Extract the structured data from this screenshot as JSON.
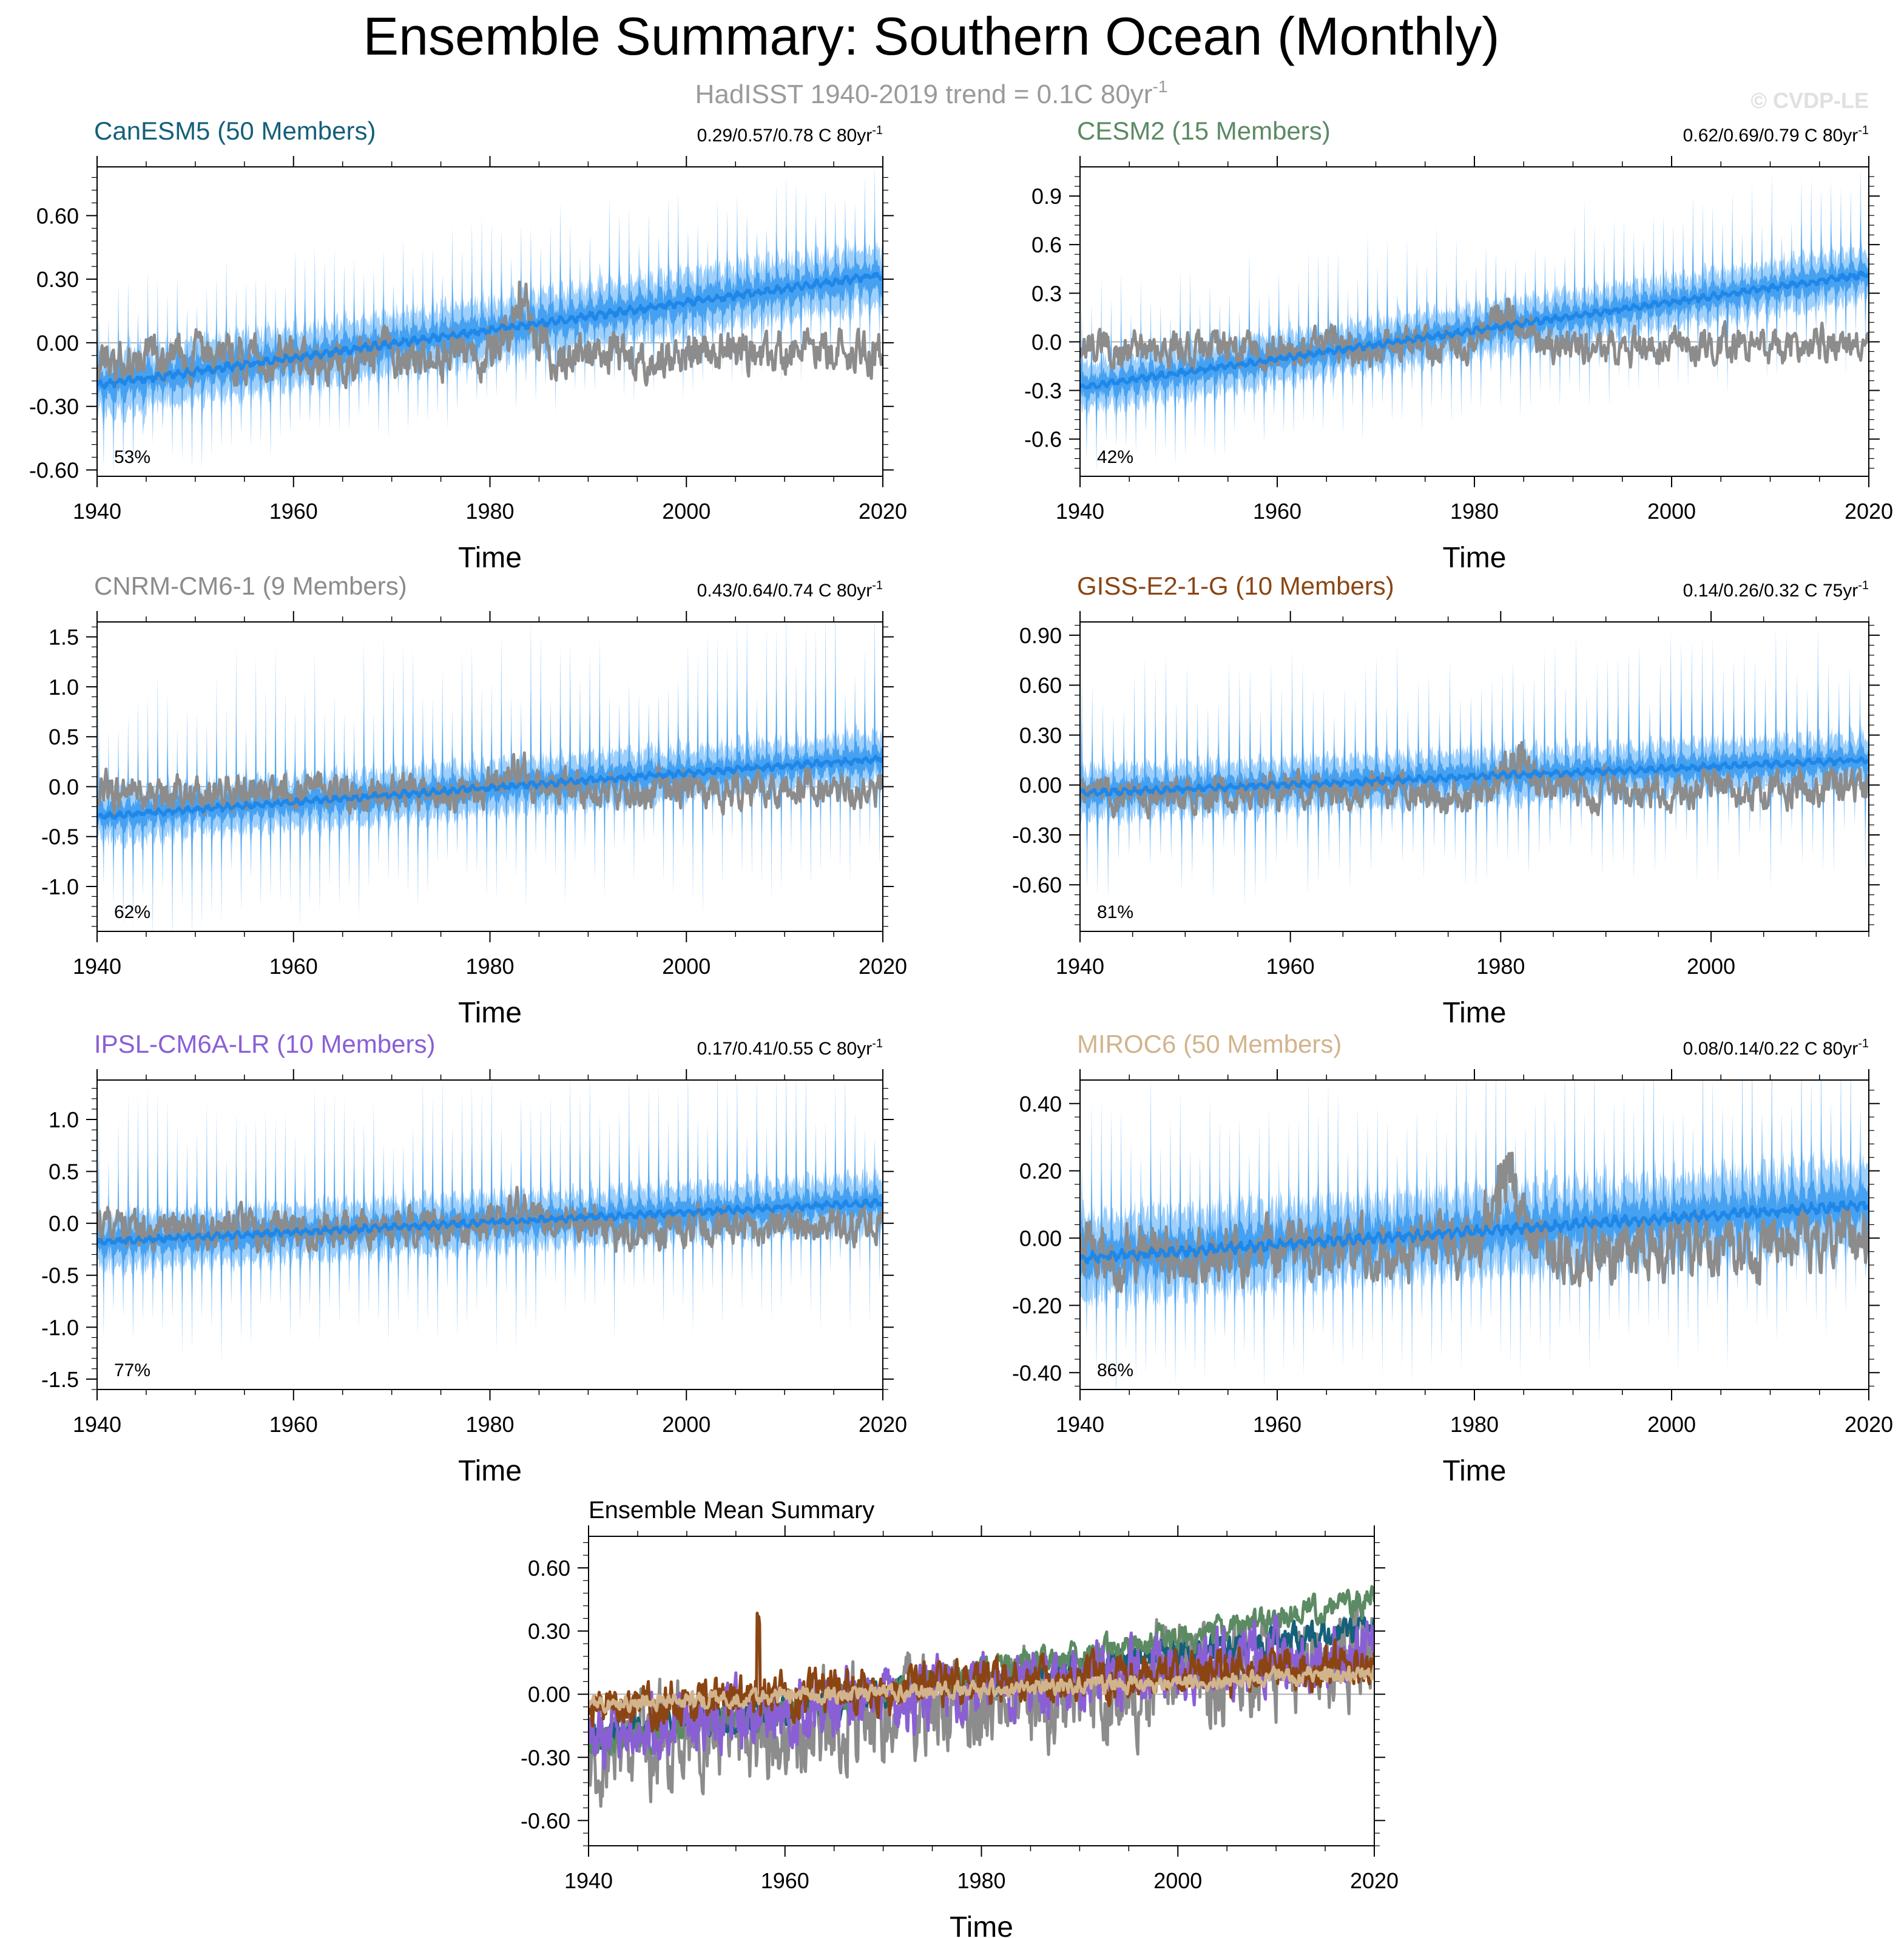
{
  "title": "Ensemble Summary: Southern Ocean (Monthly)",
  "subtitle": {
    "text": "HadISST 1940-2019 trend = 0.1C 80yr",
    "sup": "-1"
  },
  "watermark": "© CVDP-LE",
  "colors": {
    "obs": "#8c8c8c",
    "ens_mean": "#1f87e8",
    "band_inner": "#3d9bf0",
    "band_outer": "#9fd0fb",
    "zero_line": "#b0b0b0"
  },
  "chart_data": [
    {
      "type": "line",
      "title": "CanESM5 (50 Members)",
      "title_color": "#14607a",
      "trend_label": {
        "text": "0.29/0.57/0.78 C 80yr",
        "sup": "-1"
      },
      "percent_label": "53%",
      "xlabel": "Time",
      "xlim": [
        1940,
        2020
      ],
      "xticks": [
        "1940",
        "1960",
        "1980",
        "2000",
        "2020"
      ],
      "ylim": [
        -0.63,
        0.83
      ],
      "yticks": [
        "-0.60",
        "-0.30",
        "0.00",
        "0.30",
        "0.60"
      ],
      "ytick_values": [
        -0.6,
        -0.3,
        0.0,
        0.3,
        0.6
      ],
      "ens_mean_trend": {
        "start": -0.2,
        "end": 0.32
      },
      "obs_trend": {
        "start": -0.08,
        "end": -0.04,
        "bump_year": 1983,
        "bump": 0.22
      },
      "spread": 0.14,
      "spike": 0.25
    },
    {
      "type": "line",
      "title": "CESM2 (15 Members)",
      "title_color": "#5b8a63",
      "trend_label": {
        "text": "0.62/0.69/0.79 C 80yr",
        "sup": "-1"
      },
      "percent_label": "42%",
      "xlabel": "Time",
      "xlim": [
        1940,
        2020
      ],
      "xticks": [
        "1940",
        "1960",
        "1980",
        "2000",
        "2020"
      ],
      "ylim": [
        -0.83,
        1.08
      ],
      "yticks": [
        "-0.6",
        "-0.3",
        "0.0",
        "0.3",
        "0.6",
        "0.9"
      ],
      "ytick_values": [
        -0.6,
        -0.3,
        0.0,
        0.3,
        0.6,
        0.9
      ],
      "ens_mean_trend": {
        "start": -0.28,
        "end": 0.42
      },
      "obs_trend": {
        "start": -0.05,
        "end": -0.02,
        "bump_year": 1983,
        "bump": 0.2
      },
      "spread": 0.15,
      "spike": 0.35
    },
    {
      "type": "line",
      "title": "CNRM-CM6-1 (9 Members)",
      "title_color": "#8c8c8c",
      "trend_label": {
        "text": "0.43/0.64/0.74 C 80yr",
        "sup": "-1"
      },
      "percent_label": "62%",
      "xlabel": "Time",
      "xlim": [
        1940,
        2020
      ],
      "xticks": [
        "1940",
        "1960",
        "1980",
        "2000",
        "2020"
      ],
      "ylim": [
        -1.45,
        1.65
      ],
      "yticks": [
        "-1.0",
        "-0.5",
        "0.0",
        "0.5",
        "1.0",
        "1.5"
      ],
      "ytick_values": [
        -1.0,
        -0.5,
        0.0,
        0.5,
        1.0,
        1.5
      ],
      "ens_mean_trend": {
        "start": -0.3,
        "end": 0.28
      },
      "obs_trend": {
        "start": -0.05,
        "end": -0.03,
        "bump_year": 1983,
        "bump": 0.2
      },
      "spread": 0.25,
      "spike": 0.9
    },
    {
      "type": "line",
      "title": "GISS-E2-1-G (10 Members)",
      "title_color": "#8b4513",
      "trend_label": {
        "text": "0.14/0.26/0.32 C 75yr",
        "sup": "-1"
      },
      "percent_label": "81%",
      "xlabel": "Time",
      "xlim": [
        1940,
        2015
      ],
      "xticks": [
        "1940",
        "1960",
        "1980",
        "2000"
      ],
      "ylim": [
        -0.88,
        0.98
      ],
      "yticks": [
        "-0.60",
        "-0.30",
        "0.00",
        "0.30",
        "0.60",
        "0.90"
      ],
      "ytick_values": [
        -0.6,
        -0.3,
        0.0,
        0.3,
        0.6,
        0.9
      ],
      "ens_mean_trend": {
        "start": -0.05,
        "end": 0.15
      },
      "obs_trend": {
        "start": -0.06,
        "end": -0.02,
        "bump_year": 1982,
        "bump": 0.2
      },
      "spread": 0.15,
      "spike": 0.45
    },
    {
      "type": "line",
      "title": "IPSL-CM6A-LR (10 Members)",
      "title_color": "#8a5fd6",
      "trend_label": {
        "text": "0.17/0.41/0.55 C 80yr",
        "sup": "-1"
      },
      "percent_label": "77%",
      "xlabel": "Time",
      "xlim": [
        1940,
        2020
      ],
      "xticks": [
        "1940",
        "1960",
        "1980",
        "2000",
        "2020"
      ],
      "ylim": [
        -1.6,
        1.38
      ],
      "yticks": [
        "-1.5",
        "-1.0",
        "-0.5",
        "0.0",
        "0.5",
        "1.0"
      ],
      "ytick_values": [
        -1.5,
        -1.0,
        -0.5,
        0.0,
        0.5,
        1.0
      ],
      "ens_mean_trend": {
        "start": -0.18,
        "end": 0.2
      },
      "obs_trend": {
        "start": -0.06,
        "end": -0.03,
        "bump_year": 1983,
        "bump": 0.2
      },
      "spread": 0.25,
      "spike": 0.8
    },
    {
      "type": "line",
      "title": "MIROC6 (50 Members)",
      "title_color": "#d2b48c",
      "trend_label": {
        "text": "0.08/0.14/0.22 C 80yr",
        "sup": "-1"
      },
      "percent_label": "86%",
      "xlabel": "Time",
      "xlim": [
        1940,
        2020
      ],
      "xticks": [
        "1940",
        "1960",
        "1980",
        "2000",
        "2020"
      ],
      "ylim": [
        -0.45,
        0.47
      ],
      "yticks": [
        "-0.40",
        "-0.20",
        "0.00",
        "0.20",
        "0.40"
      ],
      "ytick_values": [
        -0.4,
        -0.2,
        0.0,
        0.2,
        0.4
      ],
      "ens_mean_trend": {
        "start": -0.06,
        "end": 0.1
      },
      "obs_trend": {
        "start": -0.05,
        "end": -0.02,
        "bump_year": 1983,
        "bump": 0.2
      },
      "spread": 0.12,
      "spike": 0.25
    },
    {
      "type": "line",
      "title": "Ensemble Mean Summary",
      "xlabel": "Time",
      "xlim": [
        1940,
        2020
      ],
      "xticks": [
        "1940",
        "1960",
        "1980",
        "2000",
        "2020"
      ],
      "ylim": [
        -0.72,
        0.75
      ],
      "yticks": [
        "-0.60",
        "-0.30",
        "0.00",
        "0.30",
        "0.60"
      ],
      "ytick_values": [
        -0.6,
        -0.3,
        0.0,
        0.3,
        0.6
      ],
      "series": [
        {
          "name": "CNRM-CM6-1",
          "color": "#8c8c8c",
          "start": -0.25,
          "end": 0.2,
          "amp": 0.18
        },
        {
          "name": "CanESM5",
          "color": "#14607a",
          "start": -0.2,
          "end": 0.32,
          "amp": 0.05
        },
        {
          "name": "CESM2",
          "color": "#5b8a63",
          "start": -0.25,
          "end": 0.45,
          "amp": 0.05
        },
        {
          "name": "IPSL-CM6A-LR",
          "color": "#8a5fd6",
          "start": -0.18,
          "end": 0.22,
          "amp": 0.12
        },
        {
          "name": "GISS-E2-1-G",
          "color": "#8b4513",
          "start": -0.05,
          "end": 0.15,
          "amp": 0.08
        },
        {
          "name": "MIROC6",
          "color": "#d2b48c",
          "start": -0.05,
          "end": 0.1,
          "amp": 0.03
        }
      ]
    }
  ]
}
